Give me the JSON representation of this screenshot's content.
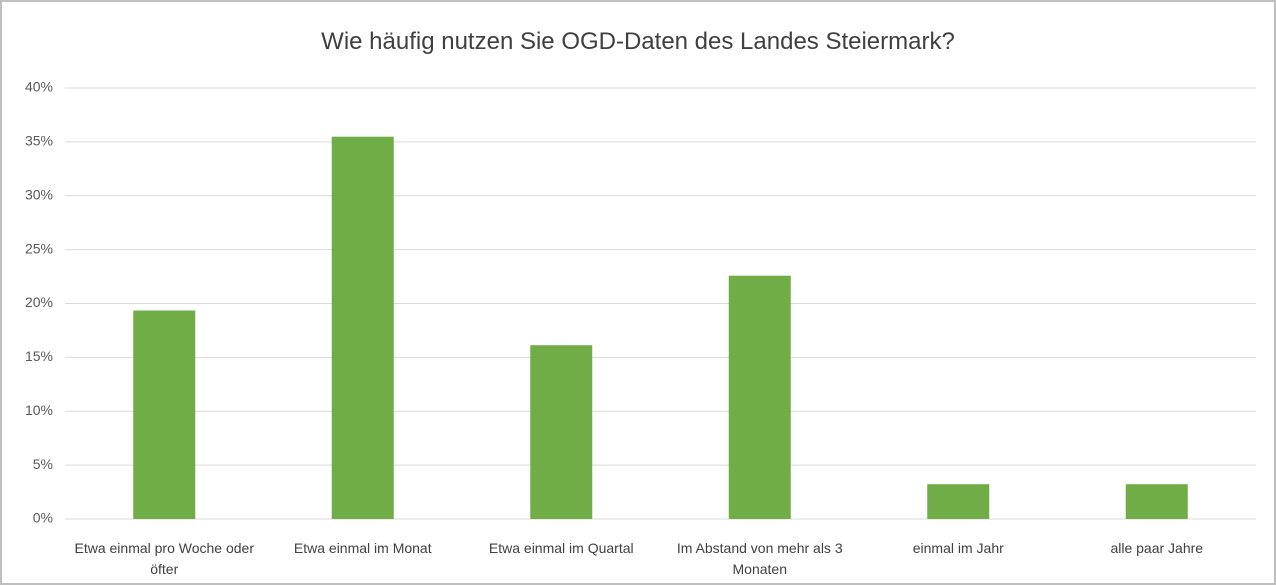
{
  "chart_data": {
    "type": "bar",
    "title": "Wie häufig nutzen Sie OGD-Daten des Landes Steiermark?",
    "categories": [
      "Etwa einmal pro Woche oder öfter",
      "Etwa einmal im Monat",
      "Etwa einmal im Quartal",
      "Im Abstand von mehr als 3 Monaten",
      "einmal im Jahr",
      "alle paar Jahre"
    ],
    "values": [
      19.35,
      35.48,
      16.13,
      22.58,
      3.23,
      3.23
    ],
    "color": "#70ad47",
    "ylim": [
      0,
      40
    ],
    "yticks": [
      {
        "value": 0,
        "label": "0%"
      },
      {
        "value": 5,
        "label": "5%"
      },
      {
        "value": 10,
        "label": "10%"
      },
      {
        "value": 15,
        "label": "15%"
      },
      {
        "value": 20,
        "label": "20%"
      },
      {
        "value": 25,
        "label": "25%"
      },
      {
        "value": 30,
        "label": "30%"
      },
      {
        "value": 35,
        "label": "35%"
      },
      {
        "value": 40,
        "label": "40%"
      }
    ],
    "grid": true
  }
}
